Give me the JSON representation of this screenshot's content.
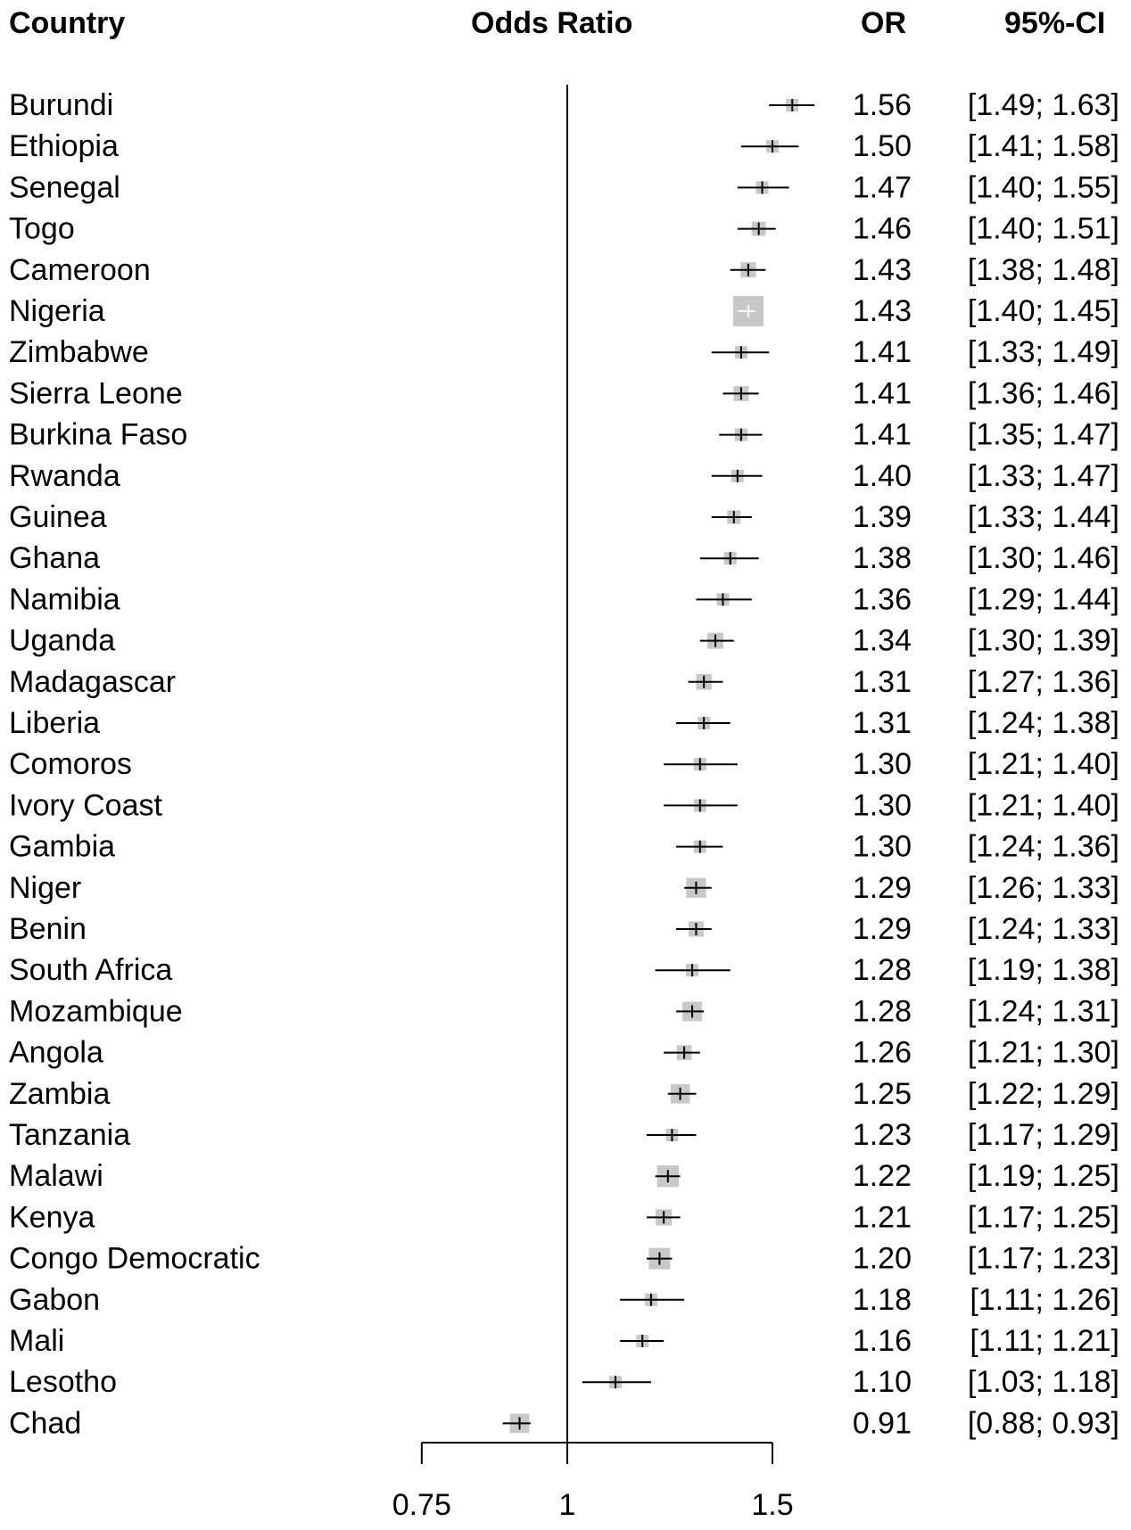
{
  "headers": {
    "country": "Country",
    "effect": "Odds Ratio",
    "or": "OR",
    "ci": "95%-CI"
  },
  "colors": {
    "box": "#c8c8c8",
    "line": "#000000",
    "cross_on_large_box": "#ffffff"
  },
  "chart_data": {
    "type": "forest",
    "xscale": "log",
    "xlim": [
      0.75,
      1.5
    ],
    "reference_line": 1,
    "xticks": [
      0.75,
      1,
      1.5
    ],
    "xtick_labels": [
      "0.75",
      "1",
      "1.5"
    ],
    "rows": [
      {
        "country": "Burundi",
        "or": 1.56,
        "lo": 1.49,
        "hi": 1.63,
        "or_label": "1.56",
        "ci_label": "[1.49; 1.63]"
      },
      {
        "country": "Ethiopia",
        "or": 1.5,
        "lo": 1.41,
        "hi": 1.58,
        "or_label": "1.50",
        "ci_label": "[1.41; 1.58]"
      },
      {
        "country": "Senegal",
        "or": 1.47,
        "lo": 1.4,
        "hi": 1.55,
        "or_label": "1.47",
        "ci_label": "[1.40; 1.55]"
      },
      {
        "country": "Togo",
        "or": 1.46,
        "lo": 1.4,
        "hi": 1.51,
        "or_label": "1.46",
        "ci_label": "[1.40; 1.51]"
      },
      {
        "country": "Cameroon",
        "or": 1.43,
        "lo": 1.38,
        "hi": 1.48,
        "or_label": "1.43",
        "ci_label": "[1.38; 1.48]"
      },
      {
        "country": "Nigeria",
        "or": 1.43,
        "lo": 1.4,
        "hi": 1.45,
        "or_label": "1.43",
        "ci_label": "[1.40; 1.45]"
      },
      {
        "country": "Zimbabwe",
        "or": 1.41,
        "lo": 1.33,
        "hi": 1.49,
        "or_label": "1.41",
        "ci_label": "[1.33; 1.49]"
      },
      {
        "country": "Sierra Leone",
        "or": 1.41,
        "lo": 1.36,
        "hi": 1.46,
        "or_label": "1.41",
        "ci_label": "[1.36; 1.46]"
      },
      {
        "country": "Burkina Faso",
        "or": 1.41,
        "lo": 1.35,
        "hi": 1.47,
        "or_label": "1.41",
        "ci_label": "[1.35; 1.47]"
      },
      {
        "country": "Rwanda",
        "or": 1.4,
        "lo": 1.33,
        "hi": 1.47,
        "or_label": "1.40",
        "ci_label": "[1.33; 1.47]"
      },
      {
        "country": "Guinea",
        "or": 1.39,
        "lo": 1.33,
        "hi": 1.44,
        "or_label": "1.39",
        "ci_label": "[1.33; 1.44]"
      },
      {
        "country": "Ghana",
        "or": 1.38,
        "lo": 1.3,
        "hi": 1.46,
        "or_label": "1.38",
        "ci_label": "[1.30; 1.46]"
      },
      {
        "country": "Namibia",
        "or": 1.36,
        "lo": 1.29,
        "hi": 1.44,
        "or_label": "1.36",
        "ci_label": "[1.29; 1.44]"
      },
      {
        "country": "Uganda",
        "or": 1.34,
        "lo": 1.3,
        "hi": 1.39,
        "or_label": "1.34",
        "ci_label": "[1.30; 1.39]"
      },
      {
        "country": "Madagascar",
        "or": 1.31,
        "lo": 1.27,
        "hi": 1.36,
        "or_label": "1.31",
        "ci_label": "[1.27; 1.36]"
      },
      {
        "country": "Liberia",
        "or": 1.31,
        "lo": 1.24,
        "hi": 1.38,
        "or_label": "1.31",
        "ci_label": "[1.24; 1.38]"
      },
      {
        "country": "Comoros",
        "or": 1.3,
        "lo": 1.21,
        "hi": 1.4,
        "or_label": "1.30",
        "ci_label": "[1.21; 1.40]"
      },
      {
        "country": "Ivory Coast",
        "or": 1.3,
        "lo": 1.21,
        "hi": 1.4,
        "or_label": "1.30",
        "ci_label": "[1.21; 1.40]"
      },
      {
        "country": "Gambia",
        "or": 1.3,
        "lo": 1.24,
        "hi": 1.36,
        "or_label": "1.30",
        "ci_label": "[1.24; 1.36]"
      },
      {
        "country": "Niger",
        "or": 1.29,
        "lo": 1.26,
        "hi": 1.33,
        "or_label": "1.29",
        "ci_label": "[1.26; 1.33]"
      },
      {
        "country": "Benin",
        "or": 1.29,
        "lo": 1.24,
        "hi": 1.33,
        "or_label": "1.29",
        "ci_label": "[1.24; 1.33]"
      },
      {
        "country": "South Africa",
        "or": 1.28,
        "lo": 1.19,
        "hi": 1.38,
        "or_label": "1.28",
        "ci_label": "[1.19; 1.38]"
      },
      {
        "country": "Mozambique",
        "or": 1.28,
        "lo": 1.24,
        "hi": 1.31,
        "or_label": "1.28",
        "ci_label": "[1.24; 1.31]"
      },
      {
        "country": "Angola",
        "or": 1.26,
        "lo": 1.21,
        "hi": 1.3,
        "or_label": "1.26",
        "ci_label": "[1.21; 1.30]"
      },
      {
        "country": "Zambia",
        "or": 1.25,
        "lo": 1.22,
        "hi": 1.29,
        "or_label": "1.25",
        "ci_label": "[1.22; 1.29]"
      },
      {
        "country": "Tanzania",
        "or": 1.23,
        "lo": 1.17,
        "hi": 1.29,
        "or_label": "1.23",
        "ci_label": "[1.17; 1.29]"
      },
      {
        "country": "Malawi",
        "or": 1.22,
        "lo": 1.19,
        "hi": 1.25,
        "or_label": "1.22",
        "ci_label": "[1.19; 1.25]"
      },
      {
        "country": "Kenya",
        "or": 1.21,
        "lo": 1.17,
        "hi": 1.25,
        "or_label": "1.21",
        "ci_label": "[1.17; 1.25]"
      },
      {
        "country": "Congo Democratic",
        "or": 1.2,
        "lo": 1.17,
        "hi": 1.23,
        "or_label": "1.20",
        "ci_label": "[1.17; 1.23]"
      },
      {
        "country": "Gabon",
        "or": 1.18,
        "lo": 1.11,
        "hi": 1.26,
        "or_label": "1.18",
        "ci_label": "[1.11; 1.26]"
      },
      {
        "country": "Mali",
        "or": 1.16,
        "lo": 1.11,
        "hi": 1.21,
        "or_label": "1.16",
        "ci_label": "[1.11; 1.21]"
      },
      {
        "country": "Lesotho",
        "or": 1.1,
        "lo": 1.03,
        "hi": 1.18,
        "or_label": "1.10",
        "ci_label": "[1.03; 1.18]"
      },
      {
        "country": "Chad",
        "or": 0.91,
        "lo": 0.88,
        "hi": 0.93,
        "or_label": "0.91",
        "ci_label": "[0.88; 0.93]"
      }
    ]
  }
}
